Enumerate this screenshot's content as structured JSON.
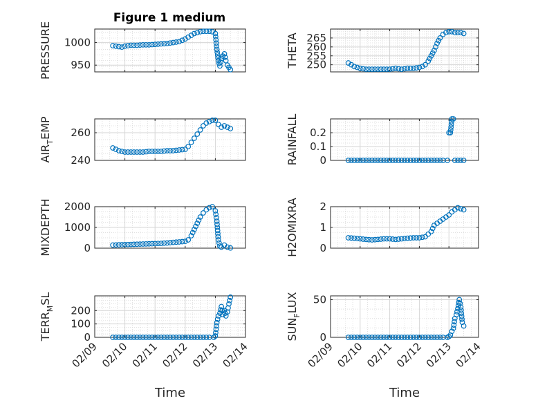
{
  "figure_title": "Figure 1 medium",
  "colors": {
    "marker": "#0072BD",
    "axis": "#262626",
    "grid": "#d6d6d6"
  },
  "chart_data": [
    {
      "type": "scatter",
      "ylabel": "PRESSURE",
      "ylim": [
        935,
        1030
      ],
      "yticks": [
        "950",
        "1000"
      ],
      "xlabel": "",
      "points": [
        [
          9.6,
          993
        ],
        [
          9.7,
          992
        ],
        [
          9.8,
          991
        ],
        [
          9.9,
          990
        ],
        [
          10.0,
          992
        ],
        [
          10.1,
          993
        ],
        [
          10.2,
          994
        ],
        [
          10.4,
          994
        ],
        [
          10.6,
          995
        ],
        [
          10.8,
          995
        ],
        [
          11.0,
          996
        ],
        [
          11.2,
          997
        ],
        [
          11.4,
          998
        ],
        [
          11.6,
          1000
        ],
        [
          11.8,
          1002
        ],
        [
          11.9,
          1005
        ],
        [
          12.0,
          1008
        ],
        [
          12.1,
          1012
        ],
        [
          12.2,
          1016
        ],
        [
          12.3,
          1020
        ],
        [
          12.4,
          1022
        ],
        [
          12.5,
          1024
        ],
        [
          12.6,
          1025
        ],
        [
          12.7,
          1025
        ],
        [
          12.8,
          1025
        ],
        [
          12.9,
          1024
        ],
        [
          13.0,
          1020
        ],
        [
          13.05,
          985
        ],
        [
          13.1,
          960
        ],
        [
          13.15,
          948
        ],
        [
          13.2,
          965
        ],
        [
          13.25,
          970
        ],
        [
          13.3,
          975
        ],
        [
          13.35,
          960
        ],
        [
          13.4,
          950
        ],
        [
          13.45,
          945
        ],
        [
          13.5,
          940
        ]
      ]
    },
    {
      "type": "scatter",
      "ylabel": "THETA",
      "ylim": [
        246,
        270
      ],
      "yticks": [
        "250",
        "255",
        "260",
        "265"
      ],
      "xlabel": "",
      "points": [
        [
          9.6,
          251
        ],
        [
          9.7,
          250
        ],
        [
          9.8,
          249
        ],
        [
          10.0,
          248
        ],
        [
          10.2,
          247.5
        ],
        [
          10.4,
          247.5
        ],
        [
          10.6,
          247.5
        ],
        [
          10.8,
          247.5
        ],
        [
          11.0,
          247.5
        ],
        [
          11.2,
          248
        ],
        [
          11.4,
          247.5
        ],
        [
          11.6,
          248
        ],
        [
          11.8,
          248
        ],
        [
          12.0,
          248.5
        ],
        [
          12.1,
          249
        ],
        [
          12.2,
          250
        ],
        [
          12.3,
          252
        ],
        [
          12.4,
          255
        ],
        [
          12.5,
          258
        ],
        [
          12.6,
          262
        ],
        [
          12.7,
          265
        ],
        [
          12.8,
          267
        ],
        [
          12.9,
          268
        ],
        [
          13.0,
          268.5
        ],
        [
          13.1,
          268.5
        ],
        [
          13.2,
          268
        ],
        [
          13.3,
          268
        ],
        [
          13.4,
          268
        ],
        [
          13.5,
          267.5
        ]
      ]
    },
    {
      "type": "scatter",
      "ylabel": "AIR_TEMP",
      "ylim": [
        240,
        270
      ],
      "yticks": [
        "240",
        "260"
      ],
      "xlabel": "",
      "points": [
        [
          9.6,
          249
        ],
        [
          9.7,
          248
        ],
        [
          9.8,
          247
        ],
        [
          10.0,
          246
        ],
        [
          10.2,
          246
        ],
        [
          10.4,
          246
        ],
        [
          10.6,
          246
        ],
        [
          10.8,
          246.5
        ],
        [
          11.0,
          246.5
        ],
        [
          11.2,
          246.5
        ],
        [
          11.4,
          247
        ],
        [
          11.6,
          247
        ],
        [
          11.8,
          247.5
        ],
        [
          12.0,
          248
        ],
        [
          12.1,
          250
        ],
        [
          12.2,
          253
        ],
        [
          12.3,
          256
        ],
        [
          12.4,
          259
        ],
        [
          12.5,
          262
        ],
        [
          12.6,
          265
        ],
        [
          12.7,
          267
        ],
        [
          12.8,
          268
        ],
        [
          12.9,
          269
        ],
        [
          13.0,
          269
        ],
        [
          13.1,
          266
        ],
        [
          13.2,
          264
        ],
        [
          13.3,
          265
        ],
        [
          13.4,
          264
        ],
        [
          13.5,
          263
        ]
      ]
    },
    {
      "type": "scatter",
      "ylabel": "RAINFALL",
      "ylim": [
        0,
        0.3
      ],
      "yticks": [
        "0",
        "0.1",
        "0.2"
      ],
      "xlabel": "",
      "points": [
        [
          9.6,
          0
        ],
        [
          9.8,
          0
        ],
        [
          10.0,
          0
        ],
        [
          10.2,
          0
        ],
        [
          10.4,
          0
        ],
        [
          10.6,
          0
        ],
        [
          10.8,
          0
        ],
        [
          11.0,
          0
        ],
        [
          11.2,
          0
        ],
        [
          11.4,
          0
        ],
        [
          11.6,
          0
        ],
        [
          11.8,
          0
        ],
        [
          12.0,
          0
        ],
        [
          12.2,
          0
        ],
        [
          12.4,
          0
        ],
        [
          12.6,
          0
        ],
        [
          12.8,
          0
        ],
        [
          12.95,
          0
        ],
        [
          13.0,
          0.2
        ],
        [
          13.05,
          0.2
        ],
        [
          13.1,
          0.3
        ],
        [
          13.15,
          0.3
        ],
        [
          13.2,
          0
        ],
        [
          13.3,
          0
        ],
        [
          13.4,
          0
        ],
        [
          13.5,
          0
        ]
      ]
    },
    {
      "type": "scatter",
      "ylabel": "MIXDEPTH",
      "ylim": [
        0,
        2000
      ],
      "yticks": [
        "0",
        "1000",
        "2000"
      ],
      "xlabel": "",
      "points": [
        [
          9.6,
          150
        ],
        [
          9.8,
          160
        ],
        [
          10.0,
          170
        ],
        [
          10.2,
          180
        ],
        [
          10.4,
          190
        ],
        [
          10.6,
          200
        ],
        [
          10.8,
          210
        ],
        [
          11.0,
          220
        ],
        [
          11.2,
          230
        ],
        [
          11.4,
          250
        ],
        [
          11.6,
          280
        ],
        [
          11.8,
          300
        ],
        [
          12.0,
          330
        ],
        [
          12.1,
          400
        ],
        [
          12.2,
          600
        ],
        [
          12.3,
          900
        ],
        [
          12.4,
          1200
        ],
        [
          12.5,
          1500
        ],
        [
          12.6,
          1700
        ],
        [
          12.7,
          1850
        ],
        [
          12.8,
          1950
        ],
        [
          12.9,
          2000
        ],
        [
          13.0,
          1800
        ],
        [
          13.05,
          1300
        ],
        [
          13.1,
          400
        ],
        [
          13.15,
          100
        ],
        [
          13.2,
          50
        ],
        [
          13.3,
          150
        ],
        [
          13.4,
          50
        ],
        [
          13.5,
          10
        ]
      ]
    },
    {
      "type": "scatter",
      "ylabel": "H2OMIXRA",
      "ylim": [
        0,
        2
      ],
      "yticks": [
        "0",
        "1",
        "2"
      ],
      "xlabel": "",
      "points": [
        [
          9.6,
          0.5
        ],
        [
          9.8,
          0.48
        ],
        [
          10.0,
          0.45
        ],
        [
          10.2,
          0.42
        ],
        [
          10.4,
          0.4
        ],
        [
          10.6,
          0.42
        ],
        [
          10.8,
          0.45
        ],
        [
          11.0,
          0.45
        ],
        [
          11.2,
          0.42
        ],
        [
          11.4,
          0.45
        ],
        [
          11.6,
          0.48
        ],
        [
          11.8,
          0.5
        ],
        [
          12.0,
          0.5
        ],
        [
          12.2,
          0.55
        ],
        [
          12.4,
          0.8
        ],
        [
          12.5,
          1.1
        ],
        [
          12.6,
          1.2
        ],
        [
          12.7,
          1.3
        ],
        [
          12.8,
          1.4
        ],
        [
          12.9,
          1.5
        ],
        [
          13.0,
          1.6
        ],
        [
          13.1,
          1.75
        ],
        [
          13.2,
          1.85
        ],
        [
          13.3,
          1.95
        ],
        [
          13.4,
          1.9
        ],
        [
          13.5,
          1.85
        ]
      ]
    },
    {
      "type": "scatter",
      "ylabel": "TERR_MSL",
      "ylim": [
        0,
        310
      ],
      "yticks": [
        "0",
        "100",
        "200"
      ],
      "xlabel": "Time",
      "xticks": [
        "02/09",
        "02/10",
        "02/11",
        "02/12",
        "02/13",
        "02/14"
      ],
      "points": [
        [
          9.6,
          0
        ],
        [
          9.8,
          0
        ],
        [
          10.0,
          0
        ],
        [
          10.2,
          0
        ],
        [
          10.4,
          0
        ],
        [
          10.6,
          0
        ],
        [
          10.8,
          0
        ],
        [
          11.0,
          0
        ],
        [
          11.2,
          0
        ],
        [
          11.4,
          0
        ],
        [
          11.6,
          0
        ],
        [
          11.8,
          0
        ],
        [
          12.0,
          0
        ],
        [
          12.2,
          0
        ],
        [
          12.4,
          0
        ],
        [
          12.6,
          0
        ],
        [
          12.8,
          0
        ],
        [
          12.95,
          0
        ],
        [
          13.0,
          10
        ],
        [
          13.05,
          110
        ],
        [
          13.1,
          160
        ],
        [
          13.15,
          180
        ],
        [
          13.2,
          230
        ],
        [
          13.25,
          170
        ],
        [
          13.3,
          200
        ],
        [
          13.35,
          160
        ],
        [
          13.4,
          190
        ],
        [
          13.45,
          250
        ],
        [
          13.5,
          300
        ]
      ]
    },
    {
      "type": "scatter",
      "ylabel": "SUN_FLUX",
      "ylim": [
        0,
        55
      ],
      "yticks": [
        "0",
        "50"
      ],
      "xlabel": "Time",
      "xticks": [
        "02/09",
        "02/10",
        "02/11",
        "02/12",
        "02/13",
        "02/14"
      ],
      "points": [
        [
          9.6,
          0
        ],
        [
          9.8,
          0
        ],
        [
          10.0,
          0
        ],
        [
          10.2,
          0
        ],
        [
          10.4,
          0
        ],
        [
          10.6,
          0
        ],
        [
          10.8,
          0
        ],
        [
          11.0,
          0
        ],
        [
          11.2,
          0
        ],
        [
          11.4,
          0
        ],
        [
          11.6,
          0
        ],
        [
          11.8,
          0
        ],
        [
          12.0,
          0
        ],
        [
          12.2,
          0
        ],
        [
          12.4,
          0
        ],
        [
          12.6,
          0
        ],
        [
          12.8,
          0
        ],
        [
          12.95,
          0
        ],
        [
          13.0,
          1
        ],
        [
          13.05,
          3
        ],
        [
          13.1,
          8
        ],
        [
          13.15,
          12
        ],
        [
          13.2,
          25
        ],
        [
          13.25,
          30
        ],
        [
          13.3,
          38
        ],
        [
          13.35,
          50
        ],
        [
          13.4,
          40
        ],
        [
          13.45,
          20
        ],
        [
          13.5,
          15
        ]
      ]
    }
  ]
}
